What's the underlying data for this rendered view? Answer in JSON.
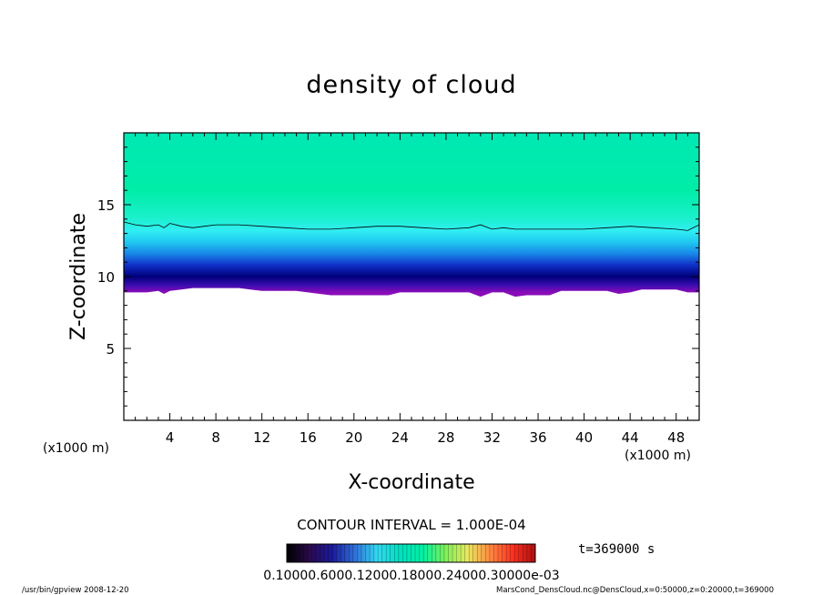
{
  "chart_data": {
    "type": "heatmap",
    "title": "density of cloud",
    "xlabel": "X-coordinate",
    "ylabel": "Z-coordinate",
    "x_unit_left": "(x1000 m)",
    "x_unit_right": "(x1000 m)",
    "xlim": [
      0,
      50
    ],
    "ylim": [
      0,
      20
    ],
    "x_ticks": [
      4,
      8,
      12,
      16,
      20,
      24,
      28,
      32,
      36,
      40,
      44,
      48
    ],
    "y_ticks": [
      5,
      10,
      15
    ],
    "contour_interval": "CONTOUR INTERVAL = 1.000E-04",
    "time_label": "t=369000 s",
    "colorbar_labels": "0.10000.6000.12000.18000.24000.30000e-03",
    "footer_left": "/usr/bin/gpview   2008-12-20",
    "footer_right": "MarsCond_DensCloud.nc@DensCloud,x=0:50000,z=0:20000,t=369000",
    "cloud_top_contour": [
      [
        0.0,
        13.8
      ],
      [
        1.0,
        13.6
      ],
      [
        2.0,
        13.5
      ],
      [
        3.0,
        13.6
      ],
      [
        3.5,
        13.4
      ],
      [
        4.0,
        13.7
      ],
      [
        5.0,
        13.5
      ],
      [
        6.0,
        13.4
      ],
      [
        7.0,
        13.5
      ],
      [
        8.0,
        13.6
      ],
      [
        10.0,
        13.6
      ],
      [
        12.0,
        13.5
      ],
      [
        14.0,
        13.4
      ],
      [
        16.0,
        13.3
      ],
      [
        18.0,
        13.3
      ],
      [
        20.0,
        13.4
      ],
      [
        22.0,
        13.5
      ],
      [
        24.0,
        13.5
      ],
      [
        26.0,
        13.4
      ],
      [
        28.0,
        13.3
      ],
      [
        30.0,
        13.4
      ],
      [
        31.0,
        13.6
      ],
      [
        32.0,
        13.3
      ],
      [
        33.0,
        13.4
      ],
      [
        34.0,
        13.3
      ],
      [
        36.0,
        13.3
      ],
      [
        38.0,
        13.3
      ],
      [
        40.0,
        13.3
      ],
      [
        42.0,
        13.4
      ],
      [
        44.0,
        13.5
      ],
      [
        46.0,
        13.4
      ],
      [
        48.0,
        13.3
      ],
      [
        49.0,
        13.2
      ],
      [
        50.0,
        13.6
      ]
    ],
    "cloud_base": [
      [
        0.0,
        8.9
      ],
      [
        2.0,
        8.9
      ],
      [
        3.0,
        9.0
      ],
      [
        3.5,
        8.8
      ],
      [
        4.0,
        9.0
      ],
      [
        5.0,
        9.1
      ],
      [
        6.0,
        9.2
      ],
      [
        10.0,
        9.2
      ],
      [
        11.0,
        9.1
      ],
      [
        12.0,
        9.0
      ],
      [
        15.0,
        9.0
      ],
      [
        16.0,
        8.9
      ],
      [
        17.0,
        8.8
      ],
      [
        18.0,
        8.7
      ],
      [
        22.0,
        8.7
      ],
      [
        23.0,
        8.7
      ],
      [
        24.0,
        8.9
      ],
      [
        28.0,
        8.9
      ],
      [
        30.0,
        8.9
      ],
      [
        31.0,
        8.6
      ],
      [
        32.0,
        8.9
      ],
      [
        33.0,
        8.9
      ],
      [
        34.0,
        8.6
      ],
      [
        35.0,
        8.7
      ],
      [
        37.0,
        8.7
      ],
      [
        38.0,
        9.0
      ],
      [
        42.0,
        9.0
      ],
      [
        43.0,
        8.8
      ],
      [
        44.0,
        8.9
      ],
      [
        45.0,
        9.1
      ],
      [
        48.0,
        9.1
      ],
      [
        49.0,
        8.9
      ],
      [
        50.0,
        8.9
      ]
    ],
    "shading_colors": [
      "#000000",
      "#2a0a4a",
      "#1a1a9c",
      "#2f6fd8",
      "#34d8f0",
      "#00e0c0",
      "#00f0a4",
      "#7cf05a",
      "#e8e860",
      "#ff8a40",
      "#ff3020",
      "#aa1010"
    ],
    "band_colors": [
      {
        "z": 8.9,
        "color": "#8a0cb8"
      },
      {
        "z": 9.4,
        "color": "#3a0cb0"
      },
      {
        "z": 10.0,
        "color": "#00007a"
      },
      {
        "z": 10.8,
        "color": "#1030c8"
      },
      {
        "z": 11.6,
        "color": "#1888e8"
      },
      {
        "z": 12.4,
        "color": "#20c8f0"
      },
      {
        "z": 13.2,
        "color": "#30eef2"
      },
      {
        "z": 14.2,
        "color": "#18f0c8"
      },
      {
        "z": 16.0,
        "color": "#00eda8"
      },
      {
        "z": 20.0,
        "color": "#00e8b4"
      }
    ]
  }
}
